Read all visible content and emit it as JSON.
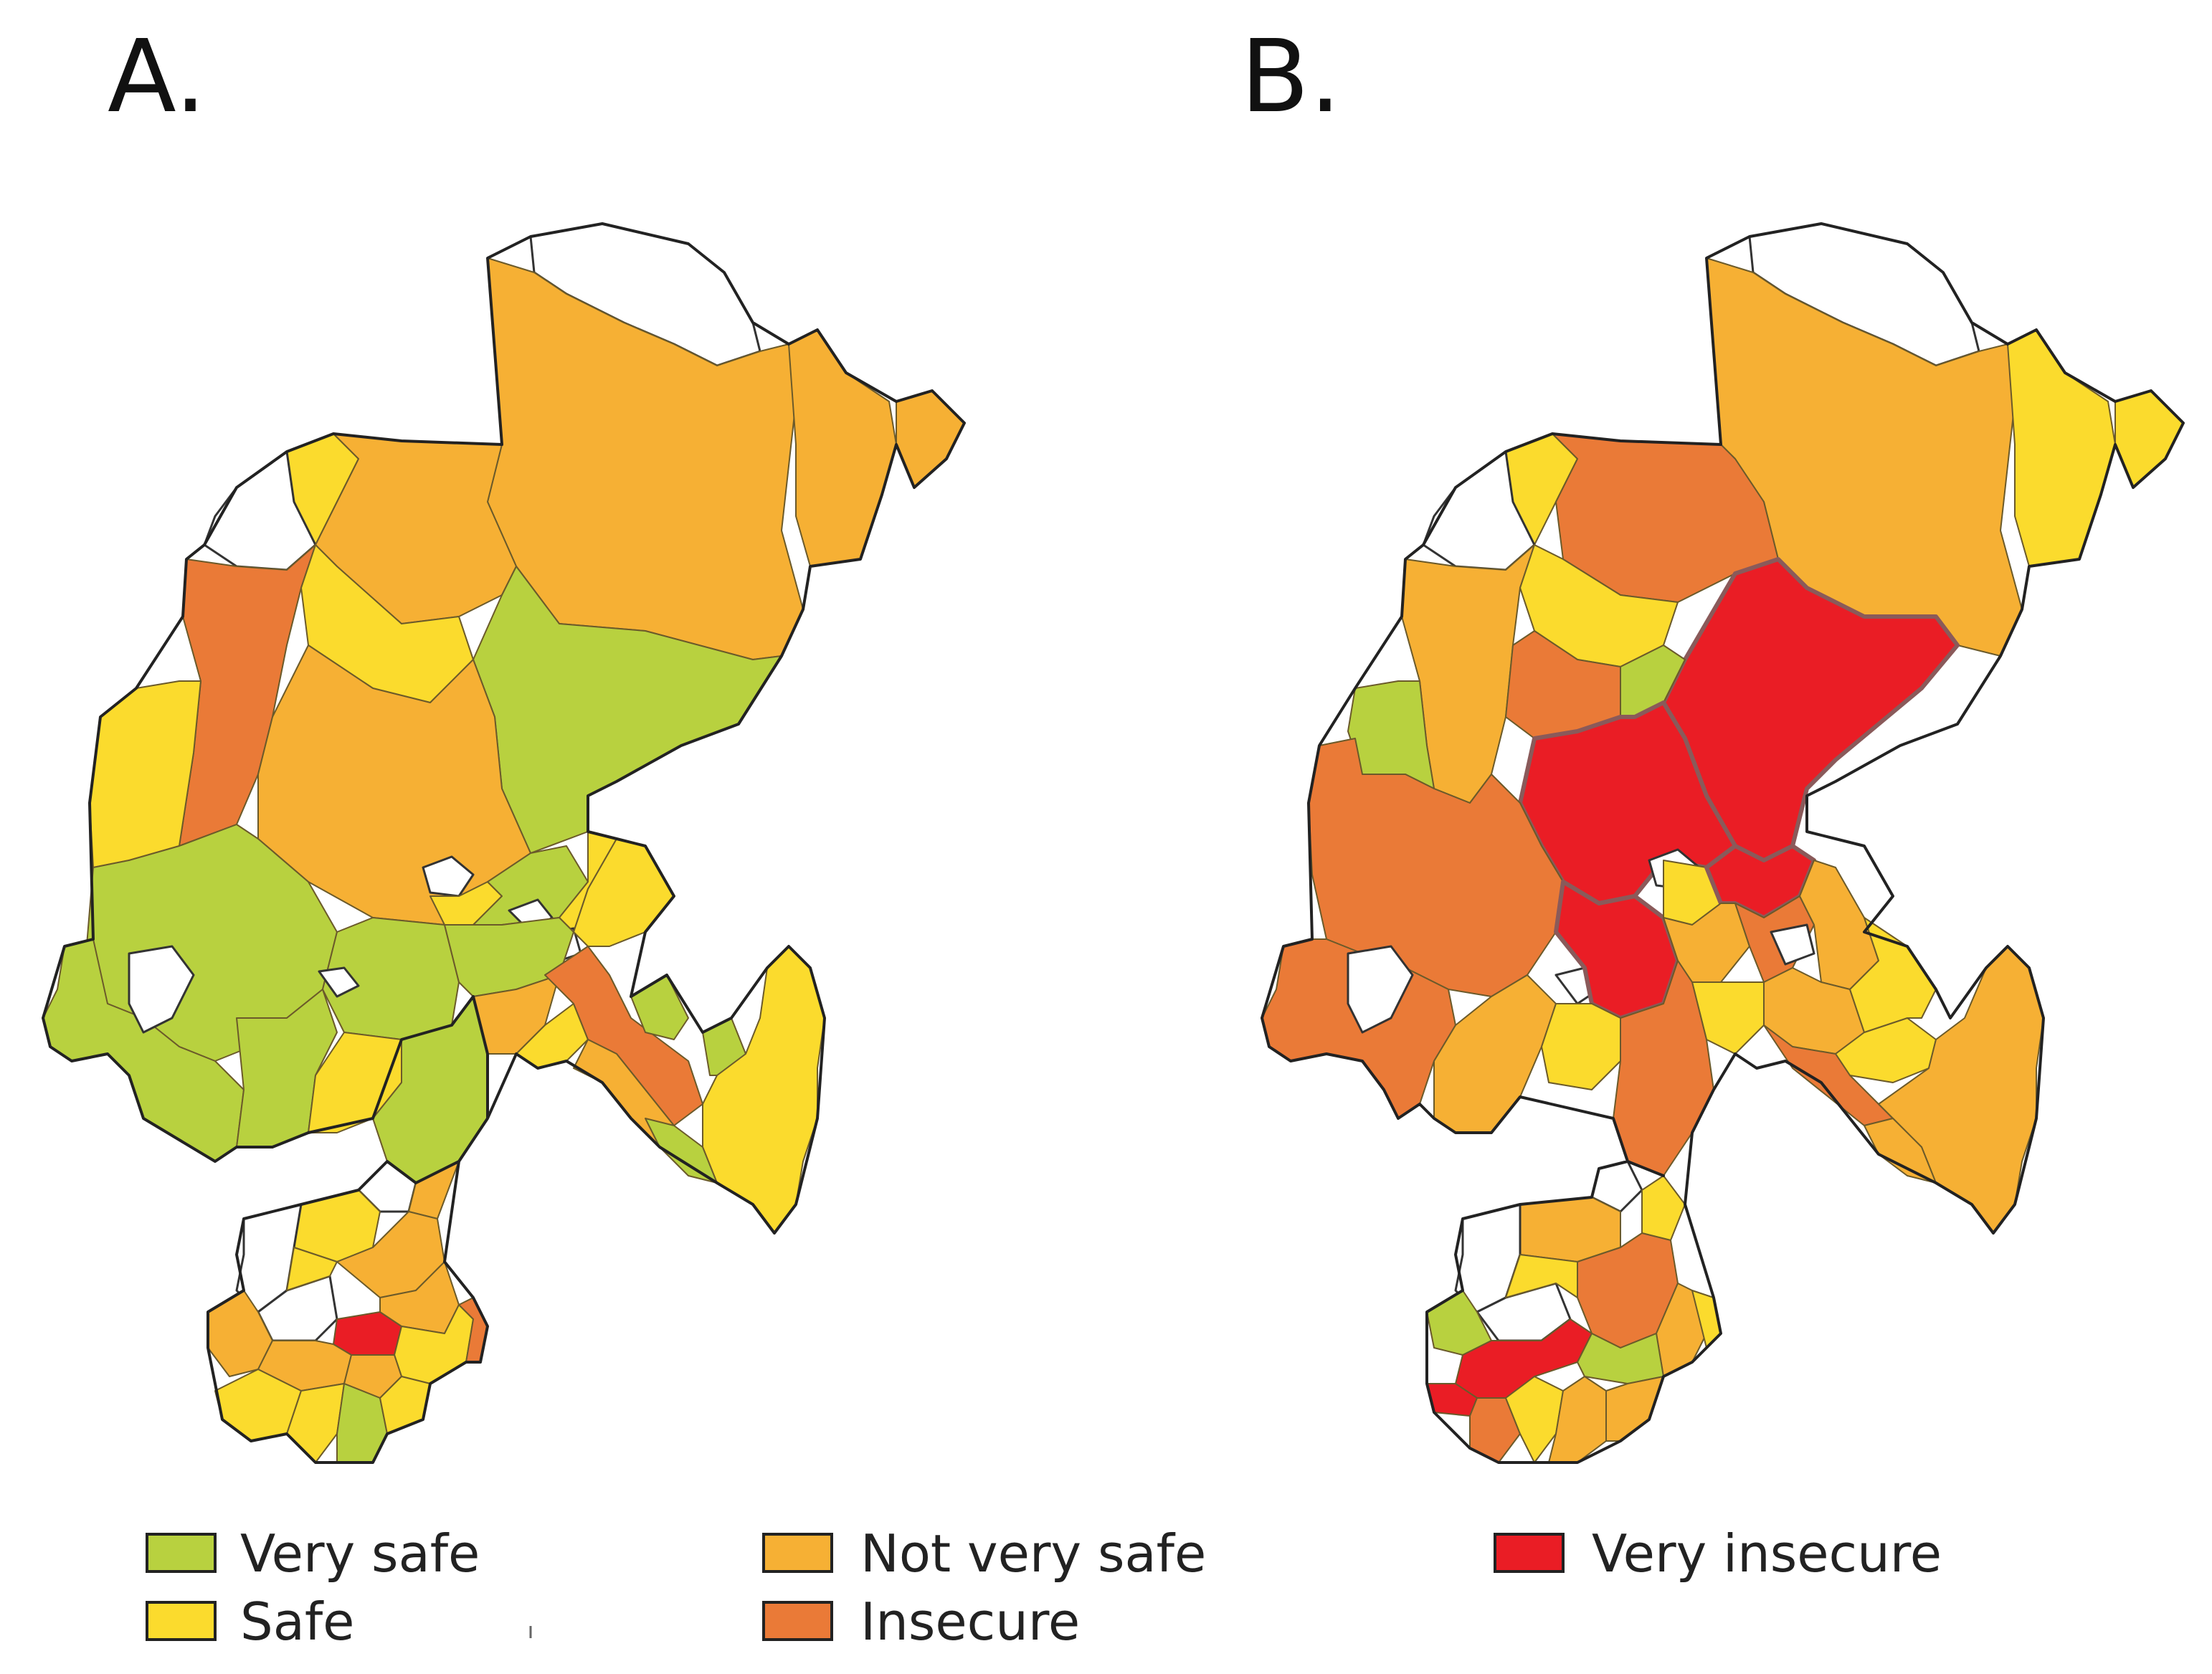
{
  "panels": [
    {
      "id": "A",
      "label": "A."
    },
    {
      "id": "B",
      "label": "B."
    }
  ],
  "legend": [
    {
      "key": "very_safe",
      "label": "Very safe",
      "color": "#b8d13f"
    },
    {
      "key": "safe",
      "label": "Safe",
      "color": "#fbdb2d"
    },
    {
      "key": "not_very_safe",
      "label": "Not very safe",
      "color": "#f6b034"
    },
    {
      "key": "insecure",
      "label": "Insecure",
      "color": "#ea7a37"
    },
    {
      "key": "very_insecure",
      "label": "Very insecure",
      "color": "#ea1d25"
    }
  ],
  "no_data_color": "#ffffff"
}
